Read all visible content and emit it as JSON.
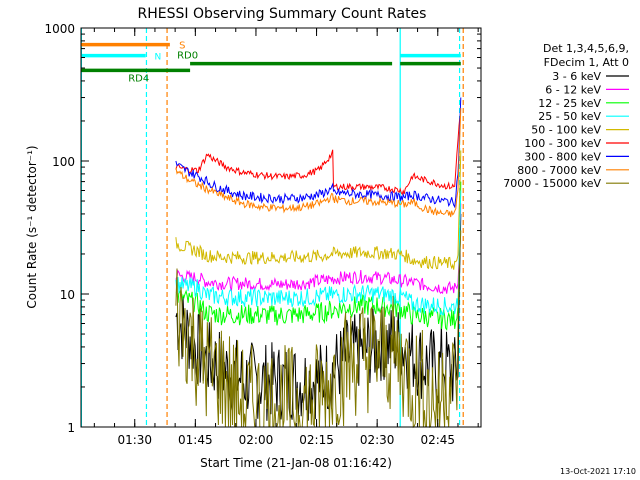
{
  "chart_data": {
    "type": "line",
    "title": "RHESSI Observing Summary Count Rates",
    "xlabel": "Start Time (21-Jan-08 01:16:42)",
    "ylabel": "Count Rate (s⁻¹ detector⁻¹)",
    "yscale": "log",
    "ylim": [
      1,
      1000
    ],
    "xlim_minutes_after_start": [
      0,
      99
    ],
    "x_ticks": [
      {
        "label": "01:30",
        "minute": 13.3
      },
      {
        "label": "01:45",
        "minute": 28.3
      },
      {
        "label": "02:00",
        "minute": 43.3
      },
      {
        "label": "02:15",
        "minute": 58.3
      },
      {
        "label": "02:30",
        "minute": 73.3
      },
      {
        "label": "02:45",
        "minute": 88.3
      }
    ],
    "y_ticks": [
      {
        "label": "1",
        "value": 1
      },
      {
        "label": "10",
        "value": 10
      },
      {
        "label": "100",
        "value": 100
      },
      {
        "label": "1000",
        "value": 1000
      }
    ],
    "legend_position": "right",
    "legend_header": [
      "Det 1,3,4,5,6,9,",
      "FDecim 1, Att 0"
    ],
    "series": [
      {
        "name": "3 - 6 keV",
        "color": "#000000",
        "x": [
          23.5,
          25,
          27,
          29,
          31,
          33.5,
          36,
          40,
          45,
          50,
          55,
          60,
          63,
          66,
          70,
          74,
          78,
          80,
          82,
          85,
          87,
          88.5,
          89.2,
          92.5,
          93.3,
          94
        ],
        "y": [
          6.8,
          5.8,
          4.8,
          3.8,
          3.2,
          3.0,
          2.6,
          2.3,
          2.2,
          2.2,
          2.2,
          2.3,
          2.8,
          3.4,
          3.8,
          4.3,
          4.3,
          4.0,
          3.5,
          3.0,
          2.9,
          2.5,
          3.2,
          2.5,
          3.0,
          40
        ]
      },
      {
        "name": "6 - 12 keV",
        "color": "#ff00ff",
        "x": [
          23.5,
          25,
          29,
          31,
          35,
          40,
          50,
          55,
          60,
          62,
          66,
          70,
          75,
          78,
          80,
          82,
          85,
          88,
          90,
          92.5,
          93.3,
          94
        ],
        "y": [
          14,
          13.5,
          13.2,
          12.4,
          12,
          12,
          11.8,
          12,
          12.7,
          13,
          13.4,
          13.5,
          13.2,
          12.7,
          12.5,
          12.2,
          11.7,
          11.3,
          11.1,
          11,
          12,
          48
        ]
      },
      {
        "name": "12 - 25 keV",
        "color": "#00ff00",
        "x": [
          23.5,
          25,
          27,
          29,
          31,
          35,
          40,
          50,
          55,
          60,
          62,
          66,
          70,
          74,
          78,
          80,
          82,
          85,
          88,
          90,
          92.5,
          93.3,
          94
        ],
        "y": [
          9.8,
          9.3,
          8.8,
          8.4,
          7.2,
          7.0,
          7.0,
          6.9,
          7.0,
          7.3,
          7.6,
          8.0,
          8.2,
          8.2,
          7.8,
          7.6,
          6.9,
          6.8,
          6.6,
          6.5,
          6.4,
          8,
          70
        ]
      },
      {
        "name": "25 - 50 keV",
        "color": "#00ffff",
        "x": [
          23.5,
          25,
          29,
          31,
          35,
          40,
          50,
          55,
          60,
          62,
          66,
          70,
          74,
          78,
          80,
          82,
          85,
          88,
          90,
          92.5,
          93.3,
          94
        ],
        "y": [
          12,
          11.5,
          11.2,
          9.8,
          9.5,
          9.4,
          9.3,
          9.4,
          9.7,
          9.8,
          10,
          10.1,
          10,
          9.7,
          9.4,
          8.4,
          8.3,
          8.2,
          8.1,
          8,
          9,
          60
        ]
      },
      {
        "name": "50 - 100 keV",
        "color": "#d2b900",
        "x": [
          23.5,
          25,
          29,
          31,
          35,
          40,
          50,
          55,
          60,
          62,
          66,
          70,
          74,
          78,
          80,
          82,
          85,
          88,
          90,
          92.5,
          93.3,
          94
        ],
        "y": [
          24,
          23,
          21,
          19.5,
          19,
          18.8,
          18.8,
          19,
          19.3,
          20,
          20.3,
          20.5,
          20.4,
          20,
          19.6,
          18,
          17.5,
          17.2,
          17,
          16.8,
          18,
          120
        ]
      },
      {
        "name": "100 - 300 keV",
        "color": "#ff0000",
        "x": [
          23.5,
          25,
          27,
          29,
          31.3,
          33,
          36,
          40,
          45,
          50,
          55,
          59,
          62.3,
          62.5,
          65,
          70,
          75,
          78,
          80,
          82,
          85,
          88,
          90,
          92.5,
          93.3,
          93.8
        ],
        "y": [
          90,
          88,
          86,
          85,
          112,
          102,
          90,
          82,
          78,
          76,
          78,
          86,
          115,
          64,
          64,
          64,
          63,
          61,
          59,
          77,
          72,
          68,
          65,
          64,
          150,
          220
        ]
      },
      {
        "name": "300 - 800 keV",
        "color": "#0000ff",
        "x": [
          23.5,
          25,
          27,
          29,
          31.3,
          33,
          36,
          40,
          45,
          50,
          55,
          59,
          62.3,
          62.5,
          66,
          70,
          74,
          78,
          80,
          82,
          85,
          88,
          90,
          92.5,
          93.3,
          94
        ],
        "y": [
          95,
          88,
          82,
          77,
          70,
          65,
          60,
          55,
          53,
          52,
          53,
          56,
          62,
          58,
          57,
          56,
          55,
          54,
          53,
          56,
          53,
          51,
          50,
          49,
          80,
          300
        ]
      },
      {
        "name": "800 - 7000 keV",
        "color": "#ff8000",
        "x": [
          23.5,
          25,
          27,
          29,
          31,
          33,
          36,
          40,
          45,
          50,
          55,
          59,
          62.3,
          62.5,
          66,
          70,
          74,
          78,
          80,
          82,
          85,
          88,
          90,
          92.5,
          93.3,
          94
        ],
        "y": [
          85,
          78,
          71,
          66,
          62,
          58,
          53,
          48,
          45,
          44,
          45,
          48,
          54,
          52,
          50,
          50,
          49,
          48,
          47,
          49,
          44,
          41,
          40,
          40,
          60,
          250
        ]
      },
      {
        "name": "7000 - 15000 keV",
        "color": "#807800",
        "x": [
          23.5,
          25,
          27,
          29,
          31,
          33.5,
          36,
          40,
          45,
          50,
          55,
          60,
          63,
          66,
          70,
          74,
          78,
          80,
          82,
          85,
          87,
          88.5,
          90,
          92.5,
          93.3,
          94
        ],
        "y": [
          7.5,
          6.2,
          5.0,
          3.6,
          2.9,
          2.6,
          2.2,
          1.5,
          1.5,
          1.5,
          1.5,
          1.7,
          2.5,
          3.0,
          3.5,
          3.6,
          3.4,
          3.0,
          2.2,
          2.0,
          1.6,
          1.4,
          2.4,
          2.0,
          3.2,
          30
        ]
      }
    ],
    "flag_bars": [
      {
        "label": "S",
        "color": "#ff8000",
        "level": 750,
        "segments": [
          [
            0,
            22
          ]
        ],
        "label_minute": 22.8
      },
      {
        "label": "N",
        "color": "#00ffff",
        "level": 620,
        "segments": [
          [
            0,
            16
          ],
          [
            79,
            94
          ]
        ],
        "label_minute": 17.2
      },
      {
        "label": "RD0",
        "color": "#008000",
        "level": 540,
        "segments": [
          [
            27,
            62
          ],
          [
            62,
            77
          ],
          [
            79,
            94
          ]
        ],
        "label_minute": 22.8
      },
      {
        "label": "RD4",
        "color": "#008000",
        "level": 480,
        "segments": [
          [
            0,
            27
          ]
        ],
        "label_minute": 13.3
      }
    ],
    "vlines": [
      {
        "minute": 0.1,
        "color": "#00ffff",
        "style": "solid"
      },
      {
        "minute": 16.2,
        "color": "#00ffff",
        "style": "dashed"
      },
      {
        "minute": 21.3,
        "color": "#ff8000",
        "style": "dashed"
      },
      {
        "minute": 79.0,
        "color": "#00ffff",
        "style": "solid"
      },
      {
        "minute": 93.7,
        "color": "#00ffff",
        "style": "dashed"
      },
      {
        "minute": 94.6,
        "color": "#ff8000",
        "style": "dashed"
      }
    ],
    "footer": "13-Oct-2021 17:10"
  }
}
